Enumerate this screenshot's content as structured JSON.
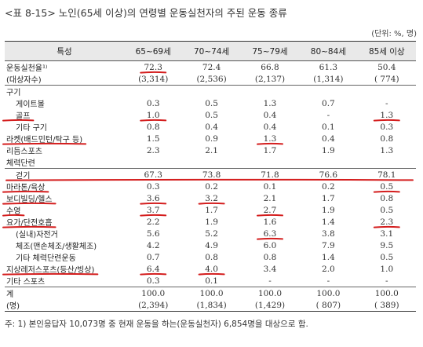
{
  "title": "<표 8-15> 노인(65세 이상)의 연령별 운동실천자의 주된 운동 종류",
  "unit": "(단위: %, 명)",
  "table": {
    "header": [
      "특성",
      "65~69세",
      "70~74세",
      "75~79세",
      "80~84세",
      "85세 이상"
    ],
    "rows": [
      {
        "label": "운동실천율¹⁾",
        "indent": 1,
        "values": [
          "72.3",
          "72.4",
          "66.8",
          "61.3",
          "50.4"
        ]
      },
      {
        "label": "(대상자수)",
        "indent": 1,
        "values": [
          "(3,314)",
          "(2,536)",
          "(2,137)",
          "(1,314)",
          "( 774)"
        ]
      },
      {
        "label": "구기",
        "indent": 1,
        "values": [
          "",
          "",
          "",
          "",
          ""
        ]
      },
      {
        "label": "게이트볼",
        "indent": 2,
        "values": [
          "0.3",
          "0.5",
          "1.3",
          "0.7",
          "-"
        ]
      },
      {
        "label": "골프",
        "indent": 2,
        "values": [
          "1.0",
          "0.5",
          "0.4",
          "-",
          "1.3"
        ]
      },
      {
        "label": "기타 구기",
        "indent": 2,
        "values": [
          "0.8",
          "0.4",
          "0.4",
          "0.1",
          "0.3"
        ]
      },
      {
        "label": "라켓(배드민턴/탁구 등)",
        "indent": 1,
        "values": [
          "1.5",
          "0.9",
          "1.3",
          "0.4",
          "0.8"
        ]
      },
      {
        "label": "리듬스포츠",
        "indent": 1,
        "values": [
          "2.3",
          "2.1",
          "1.7",
          "1.9",
          "1.3"
        ]
      },
      {
        "label": "체력단련",
        "indent": 1,
        "values": [
          "",
          "",
          "",
          "",
          ""
        ]
      },
      {
        "label": "걷기",
        "indent": 2,
        "values": [
          "67.3",
          "73.8",
          "71.8",
          "76.6",
          "78.1"
        ]
      },
      {
        "label": "마라톤/육상",
        "indent": 1,
        "values": [
          "0.3",
          "0.2",
          "0.1",
          "0.2",
          "0.5"
        ]
      },
      {
        "label": "보디빌딩/헬스",
        "indent": 1,
        "values": [
          "3.6",
          "3.2",
          "2.1",
          "1.7",
          "0.8"
        ]
      },
      {
        "label": "수영",
        "indent": 1,
        "values": [
          "3.7",
          "1.7",
          "2.7",
          "1.9",
          "0.5"
        ]
      },
      {
        "label": "요가/단전호흡",
        "indent": 1,
        "values": [
          "2.2",
          "1.9",
          "1.6",
          "1.4",
          "2.3"
        ]
      },
      {
        "label": "(실내)자전거",
        "indent": 2,
        "values": [
          "5.6",
          "5.2",
          "6.3",
          "3.8",
          "3.1"
        ]
      },
      {
        "label": "체조(맨손체조/생활체조)",
        "indent": 2,
        "values": [
          "4.2",
          "4.9",
          "6.0",
          "7.9",
          "9.5"
        ]
      },
      {
        "label": "기타 체력단련운동",
        "indent": 2,
        "values": [
          "0.7",
          "0.8",
          "0.8",
          "1.4",
          "0.5"
        ]
      },
      {
        "label": "지상레저스포츠(등산/빙상)",
        "indent": 1,
        "values": [
          "6.4",
          "4.0",
          "3.4",
          "2.0",
          "1.0"
        ]
      },
      {
        "label": "기타 스포츠",
        "indent": 1,
        "values": [
          "0.3",
          "0.1",
          "-",
          "-",
          "-"
        ]
      },
      {
        "label": "계",
        "indent": 1,
        "values": [
          "100.0",
          "100.0",
          "100.0",
          "100.0",
          "100.0"
        ]
      },
      {
        "label": "(명)",
        "indent": 1,
        "values": [
          "(2,394)",
          "(1,834)",
          "(1,429)",
          "( 807)",
          "( 389)"
        ]
      }
    ]
  },
  "note": "주: 1) 본인응답자 10,073명 중 현재 운동을 하는(운동실천자) 6,854명을 대상으로 함.",
  "annotations": {
    "color": "#d41e1e",
    "underlines": [
      {
        "row": 0,
        "col": 1
      },
      {
        "row": 4,
        "col": 0
      },
      {
        "row": 4,
        "col": 1
      },
      {
        "row": 4,
        "col": 5
      },
      {
        "row": 6,
        "col": 0
      },
      {
        "row": 6,
        "col": 3
      },
      {
        "row": 9,
        "col": 0,
        "span": 6
      },
      {
        "row": 10,
        "col": 0
      },
      {
        "row": 10,
        "col": 5
      },
      {
        "row": 11,
        "col": 0
      },
      {
        "row": 11,
        "col": 1
      },
      {
        "row": 11,
        "col": 2
      },
      {
        "row": 12,
        "col": 0
      },
      {
        "row": 12,
        "col": 1
      },
      {
        "row": 12,
        "col": 3
      },
      {
        "row": 13,
        "col": 0
      },
      {
        "row": 13,
        "col": 5
      },
      {
        "row": 14,
        "col": 3
      },
      {
        "row": 17,
        "col": 0
      },
      {
        "row": 17,
        "col": 1
      },
      {
        "row": 17,
        "col": 2
      }
    ]
  }
}
